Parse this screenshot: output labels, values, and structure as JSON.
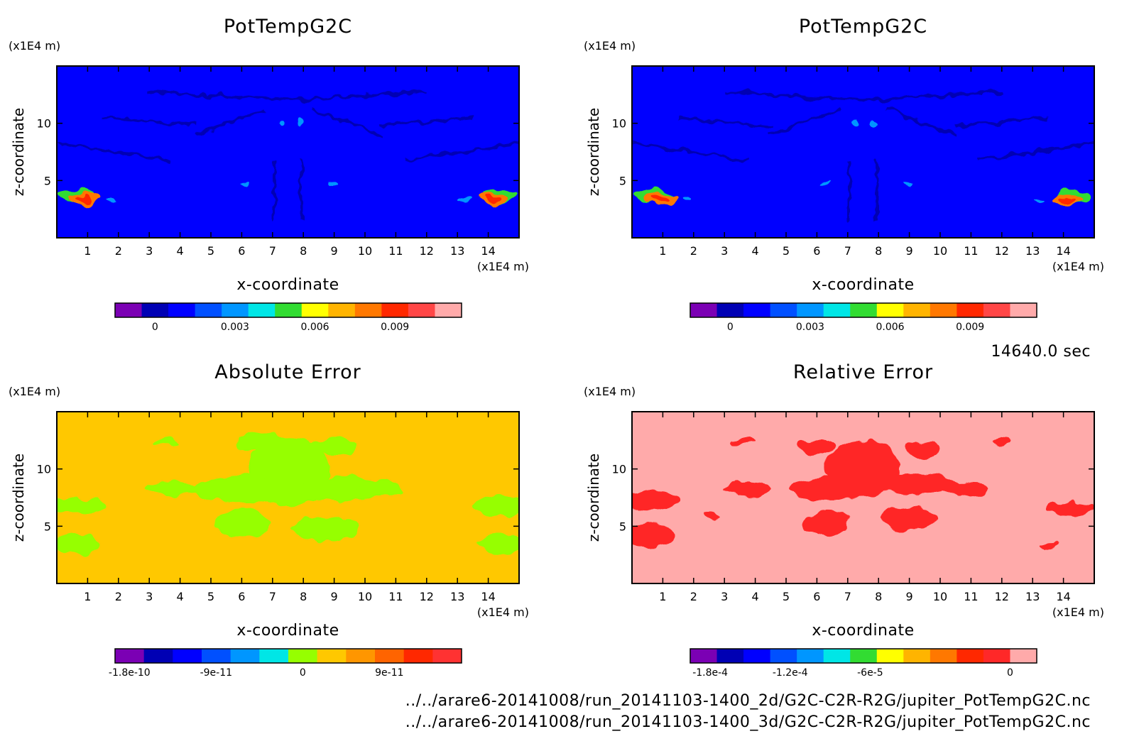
{
  "time_label": "14640.0 sec",
  "file_lines": [
    "../../arare6-20141008/run_20141103-1400_2d/G2C-C2R-R2G/jupiter_PotTempG2C.nc",
    "../../arare6-20141008/run_20141103-1400_3d/G2C-C2R-R2G/jupiter_PotTempG2C.nc"
  ],
  "chart_data": [
    {
      "type": "heatmap",
      "title": "PotTempG2C",
      "xlabel": "x-coordinate",
      "ylabel": "z-coordinate",
      "x_unit": "(x1E4 m)",
      "y_unit": "(x1E4 m)",
      "xlim": [
        0,
        15
      ],
      "ylim": [
        0,
        15
      ],
      "x_ticks": [
        "1",
        "2",
        "3",
        "4",
        "5",
        "6",
        "7",
        "8",
        "9",
        "10",
        "11",
        "12",
        "13",
        "14"
      ],
      "y_ticks": [
        "5",
        "10"
      ],
      "background_color": "#0000ff",
      "colorbar": {
        "colors": [
          "#7b00b4",
          "#0000b4",
          "#0000ff",
          "#0050ff",
          "#0096ff",
          "#00e6e6",
          "#32dc32",
          "#ffff00",
          "#ffb400",
          "#ff7800",
          "#ff2800",
          "#ff4646",
          "#ffaaaa"
        ],
        "tick_labels": [
          "0",
          "0.003",
          "0.006",
          "0.009"
        ]
      }
    },
    {
      "type": "heatmap",
      "title": "PotTempG2C",
      "xlabel": "x-coordinate",
      "ylabel": "z-coordinate",
      "x_unit": "(x1E4 m)",
      "y_unit": "(x1E4 m)",
      "xlim": [
        0,
        15
      ],
      "ylim": [
        0,
        15
      ],
      "x_ticks": [
        "1",
        "2",
        "3",
        "4",
        "5",
        "6",
        "7",
        "8",
        "9",
        "10",
        "11",
        "12",
        "13",
        "14"
      ],
      "y_ticks": [
        "5",
        "10"
      ],
      "background_color": "#0000ff",
      "colorbar": {
        "colors": [
          "#7b00b4",
          "#0000b4",
          "#0000ff",
          "#0050ff",
          "#0096ff",
          "#00e6e6",
          "#32dc32",
          "#ffff00",
          "#ffb400",
          "#ff7800",
          "#ff2800",
          "#ff4646",
          "#ffaaaa"
        ],
        "tick_labels": [
          "0",
          "0.003",
          "0.006",
          "0.009"
        ]
      }
    },
    {
      "type": "heatmap",
      "title": "Absolute Error",
      "xlabel": "x-coordinate",
      "ylabel": "z-coordinate",
      "x_unit": "(x1E4 m)",
      "y_unit": "(x1E4 m)",
      "xlim": [
        0,
        15
      ],
      "ylim": [
        0,
        15
      ],
      "x_ticks": [
        "1",
        "2",
        "3",
        "4",
        "5",
        "6",
        "7",
        "8",
        "9",
        "10",
        "11",
        "12",
        "13",
        "14"
      ],
      "y_ticks": [
        "5",
        "10"
      ],
      "background_color": "#ffc800",
      "colorbar": {
        "colors": [
          "#7b00b4",
          "#0000b4",
          "#0000ff",
          "#0050ff",
          "#0096ff",
          "#00e6e6",
          "#96ff00",
          "#ffc800",
          "#ff9600",
          "#ff6400",
          "#ff2800",
          "#ff3232"
        ],
        "tick_labels": [
          "-1.8e-10",
          "-9e-11",
          "0",
          "9e-11"
        ]
      }
    },
    {
      "type": "heatmap",
      "title": "Relative Error",
      "xlabel": "x-coordinate",
      "ylabel": "z-coordinate",
      "x_unit": "(x1E4 m)",
      "y_unit": "(x1E4 m)",
      "xlim": [
        0,
        15
      ],
      "ylim": [
        0,
        15
      ],
      "x_ticks": [
        "1",
        "2",
        "3",
        "4",
        "5",
        "6",
        "7",
        "8",
        "9",
        "10",
        "11",
        "12",
        "13",
        "14"
      ],
      "y_ticks": [
        "5",
        "10"
      ],
      "background_color": "#ffaaaa",
      "colorbar": {
        "colors": [
          "#7b00b4",
          "#0000b4",
          "#0000ff",
          "#0050ff",
          "#0096ff",
          "#00e6e6",
          "#32dc32",
          "#ffff00",
          "#ffb400",
          "#ff7800",
          "#ff2800",
          "#ff2828",
          "#ffaaaa"
        ],
        "tick_labels": [
          "-1.8e-4",
          "-1.2e-4",
          "-6e-5",
          "0"
        ]
      }
    }
  ]
}
